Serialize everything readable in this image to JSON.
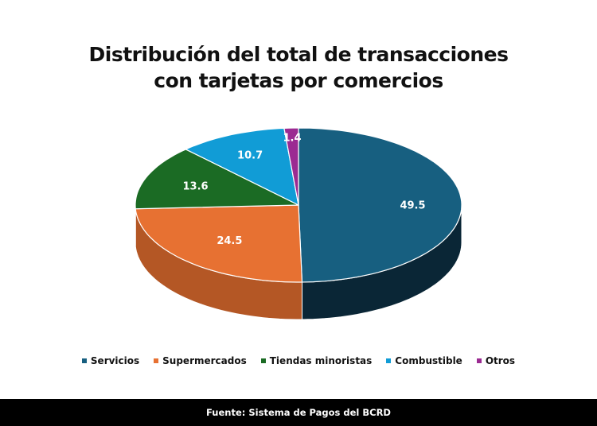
{
  "chart_data": {
    "type": "pie",
    "title_lines": [
      "Distribución del total de transacciones",
      "con tarjetas por comercios"
    ],
    "categories": [
      "Servicios",
      "Supermercados",
      "Tiendas minoristas",
      "Combustible",
      "Otros"
    ],
    "values": [
      49.5,
      24.5,
      13.6,
      10.7,
      1.4
    ],
    "labels": [
      "49.5",
      "24.5",
      "13.6",
      "10.7",
      "1.4"
    ],
    "colors": [
      "#175f80",
      "#e77132",
      "#1b6b24",
      "#119cd6",
      "#9b2a92"
    ],
    "side_colors": [
      "#0a2636",
      "#b45725",
      "#124a19",
      "#0c6f99",
      "#6d1d67"
    ],
    "style": "3d",
    "legend_position": "bottom"
  },
  "footer": "Fuente: Sistema de Pagos del BCRD"
}
